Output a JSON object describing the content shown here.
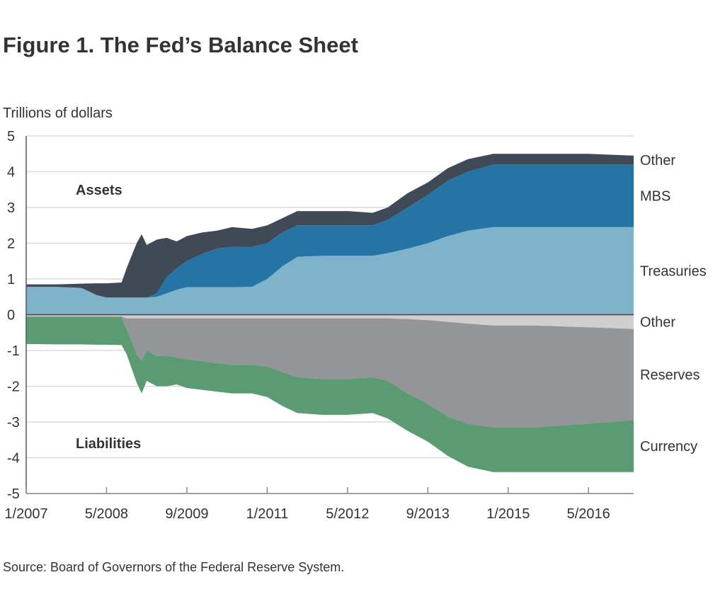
{
  "chart_data": {
    "type": "area",
    "title": "Figure 1. The Fed’s Balance Sheet",
    "ylabel": "Trillions of dollars",
    "ylim": [
      -5,
      5
    ],
    "yticks": [
      "5",
      "4",
      "3",
      "2",
      "1",
      "0",
      "-1",
      "-2",
      "-3",
      "-4",
      "-5"
    ],
    "xticks": [
      "1/2007",
      "5/2008",
      "9/2009",
      "1/2011",
      "5/2012",
      "9/2013",
      "1/2015",
      "5/2016"
    ],
    "xlim": [
      "2007-01",
      "2017-02"
    ],
    "grid": true,
    "source": "Source: Board of Governors of the Federal Reserve System.",
    "annotations": {
      "assets": "Assets",
      "liabilities": "Liabilities"
    },
    "dates": [
      "2007-01",
      "2007-07",
      "2007-12",
      "2008-03",
      "2008-05",
      "2008-08",
      "2008-09",
      "2008-11",
      "2008-12",
      "2009-01",
      "2009-03",
      "2009-05",
      "2009-07",
      "2009-09",
      "2009-12",
      "2010-03",
      "2010-06",
      "2010-10",
      "2011-01",
      "2011-04",
      "2011-07",
      "2011-12",
      "2012-05",
      "2012-10",
      "2013-01",
      "2013-05",
      "2013-09",
      "2014-01",
      "2014-05",
      "2014-10",
      "2015-06",
      "2016-05",
      "2017-02"
    ],
    "assets": [
      {
        "name": "Treasuries",
        "color": "#7eb3ca",
        "values": [
          0.78,
          0.78,
          0.75,
          0.55,
          0.48,
          0.48,
          0.48,
          0.48,
          0.48,
          0.48,
          0.5,
          0.6,
          0.7,
          0.77,
          0.77,
          0.77,
          0.77,
          0.78,
          1.0,
          1.35,
          1.62,
          1.65,
          1.65,
          1.65,
          1.72,
          1.85,
          2.0,
          2.2,
          2.35,
          2.45,
          2.45,
          2.45,
          2.45
        ]
      },
      {
        "name": "MBS",
        "color": "#2474a6",
        "values": [
          0,
          0,
          0,
          0,
          0,
          0,
          0,
          0,
          0,
          0,
          0.1,
          0.45,
          0.6,
          0.73,
          0.93,
          1.08,
          1.13,
          1.12,
          1.0,
          0.95,
          0.88,
          0.85,
          0.85,
          0.85,
          0.93,
          1.15,
          1.35,
          1.55,
          1.65,
          1.75,
          1.75,
          1.75,
          1.75
        ]
      },
      {
        "name": "Other",
        "color": "#404a56",
        "values": [
          0.07,
          0.07,
          0.12,
          0.33,
          0.4,
          0.42,
          0.82,
          1.52,
          1.77,
          1.47,
          1.5,
          1.1,
          0.75,
          0.7,
          0.6,
          0.5,
          0.55,
          0.5,
          0.5,
          0.4,
          0.4,
          0.4,
          0.4,
          0.35,
          0.35,
          0.4,
          0.35,
          0.35,
          0.35,
          0.3,
          0.3,
          0.3,
          0.25
        ]
      }
    ],
    "liabilities": [
      {
        "name": "Other",
        "color": "#cfcfd0",
        "values": [
          -0.05,
          -0.05,
          -0.05,
          -0.05,
          -0.05,
          -0.05,
          -0.1,
          -0.1,
          -0.1,
          -0.1,
          -0.1,
          -0.1,
          -0.1,
          -0.1,
          -0.1,
          -0.1,
          -0.1,
          -0.1,
          -0.1,
          -0.1,
          -0.1,
          -0.1,
          -0.1,
          -0.1,
          -0.1,
          -0.12,
          -0.15,
          -0.2,
          -0.25,
          -0.3,
          -0.3,
          -0.35,
          -0.4
        ]
      },
      {
        "name": "Reserves",
        "color": "#939598",
        "values": [
          -0.02,
          -0.02,
          -0.02,
          -0.02,
          -0.02,
          -0.02,
          -0.3,
          -1.0,
          -1.2,
          -0.9,
          -1.05,
          -1.05,
          -1.1,
          -1.15,
          -1.2,
          -1.25,
          -1.3,
          -1.3,
          -1.35,
          -1.5,
          -1.65,
          -1.7,
          -1.7,
          -1.65,
          -1.75,
          -2.08,
          -2.35,
          -2.65,
          -2.8,
          -2.85,
          -2.85,
          -2.7,
          -2.55
        ]
      },
      {
        "name": "Currency",
        "color": "#5a9b71",
        "values": [
          -0.75,
          -0.76,
          -0.76,
          -0.77,
          -0.77,
          -0.78,
          -0.7,
          -0.8,
          -0.9,
          -0.85,
          -0.85,
          -0.85,
          -0.75,
          -0.8,
          -0.8,
          -0.8,
          -0.8,
          -0.8,
          -0.85,
          -0.95,
          -1.0,
          -1.0,
          -1.0,
          -1.0,
          -1.05,
          -1.05,
          -1.05,
          -1.1,
          -1.2,
          -1.25,
          -1.25,
          -1.35,
          -1.45
        ]
      }
    ]
  }
}
